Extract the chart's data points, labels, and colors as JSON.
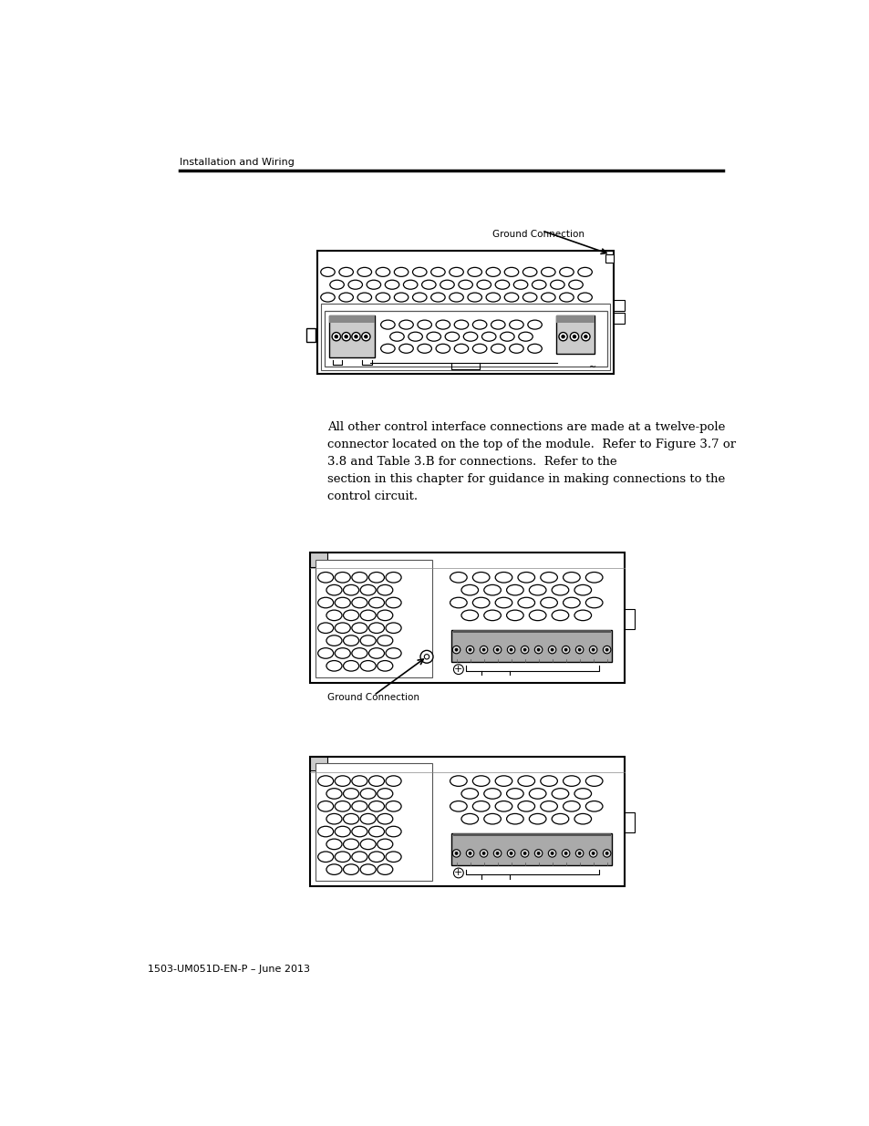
{
  "bg_color": "#ffffff",
  "header_text": "Installation and Wiring",
  "footer_text": "1503-UM051D-EN-P – June 2013",
  "body_text": "All other control interface connections are made at a twelve-pole\nconnector located on the top of the module.  Refer to Figure 3.7 or\n3.8 and Table 3.B for connections.  Refer to the\nsection in this chapter for guidance in making connections to the\ncontrol circuit.",
  "fig1_label": "Ground Connection",
  "fig2_label": "Ground Connection",
  "header_fontsize": 8,
  "body_fontsize": 9.5,
  "footer_fontsize": 8
}
